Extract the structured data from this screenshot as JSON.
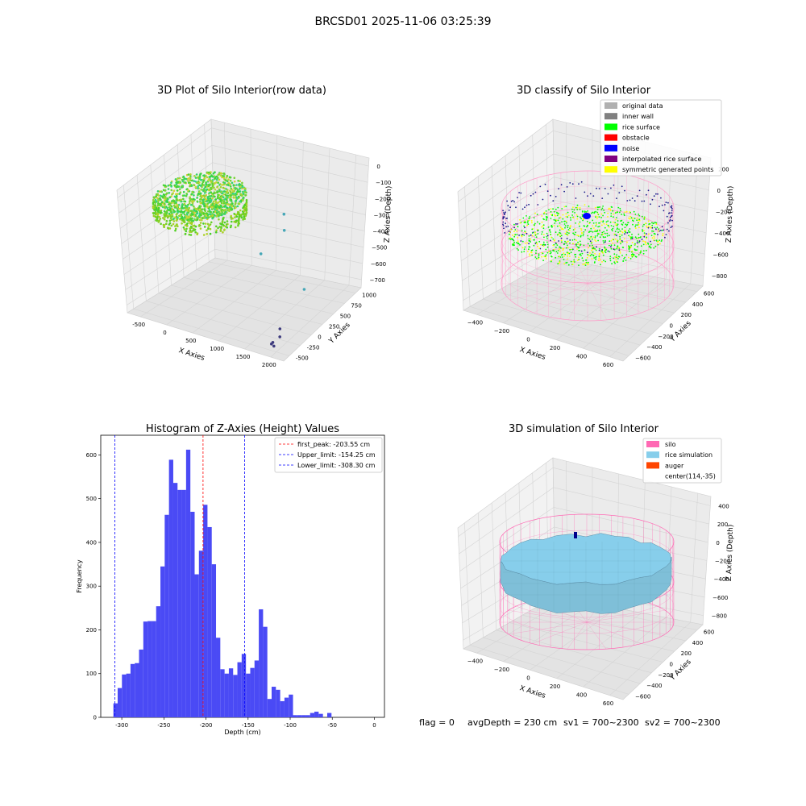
{
  "figure": {
    "suptitle": "BRCSD01 2025-11-06 03:25:39",
    "footer": {
      "flag": "flag = 0",
      "avg_depth": "avgDepth = 230 cm",
      "sv1": "sv1 = 700~2300",
      "sv2": "sv2 = 700~2300"
    }
  },
  "colors": {
    "pane": "#f2f2f2",
    "pane_side": "#e6e6e6",
    "grid": "#d4d4d4",
    "hist_bar": "#4a4af5",
    "silo_pink": "#ff69b4",
    "rice_sim": "#87ceeb",
    "noise_blue": "#0000ff",
    "rice_green": "#00ff00",
    "symmetric_yellow": "#ffff00"
  },
  "chart_data": [
    {
      "id": "raw",
      "type": "scatter",
      "title": "3D Plot of Silo Interior(row data)",
      "xlabel": "X Axies",
      "ylabel": "Y Axies",
      "zlabel": "Z Axies (Depth)",
      "x_ticks": [
        "-500",
        "0",
        "500",
        "1000",
        "1500",
        "2000"
      ],
      "y_ticks": [
        "-500",
        "-250",
        "0",
        "250",
        "500",
        "750",
        "1000"
      ],
      "z_ticks": [
        "0",
        "−100",
        "−200",
        "−300",
        "−400",
        "−500",
        "−600",
        "−700"
      ],
      "xlim": [
        -600,
        2200
      ],
      "ylim": [
        -600,
        1100
      ],
      "zlim": [
        -750,
        50
      ],
      "outliers": [
        {
          "x": 1150,
          "y": 650,
          "z": -240
        },
        {
          "x": 1200,
          "y": 600,
          "z": -320
        },
        {
          "x": 1050,
          "y": 280,
          "z": -410
        },
        {
          "x": 1650,
          "y": 500,
          "z": -600
        },
        {
          "x": 1900,
          "y": -300,
          "z": -650
        },
        {
          "x": 1950,
          "y": -360,
          "z": -680
        },
        {
          "x": 1900,
          "y": -450,
          "z": -700
        },
        {
          "x": 1850,
          "y": -420,
          "z": -720
        },
        {
          "x": 1980,
          "y": -520,
          "z": -700
        }
      ]
    },
    {
      "id": "classify",
      "type": "scatter",
      "title": "3D classify of Silo Interior",
      "xlabel": "X Axies",
      "ylabel": "Y Axies",
      "zlabel": "Z Axies (Depth)",
      "x_ticks": [
        "−400",
        "−200",
        "0",
        "200",
        "400",
        "600"
      ],
      "y_ticks": [
        "−600",
        "−400",
        "−200",
        "0",
        "200",
        "400",
        "600"
      ],
      "z_ticks": [
        "200",
        "0",
        "−200",
        "−400",
        "−600",
        "−800"
      ],
      "legend": [
        {
          "label": "original data",
          "color": "#b0b0b0"
        },
        {
          "label": "inner wall",
          "color": "#808080"
        },
        {
          "label": "rice surface",
          "color": "#00ff00"
        },
        {
          "label": "obstacle",
          "color": "#ff0000"
        },
        {
          "label": "noise",
          "color": "#0000ff"
        },
        {
          "label": "interpolated rice surface",
          "color": "#800080"
        },
        {
          "label": "symmetric generated points",
          "color": "#ffff00"
        }
      ]
    },
    {
      "id": "histogram",
      "type": "bar",
      "title": "Histogram of Z-Axies (Height) Values",
      "xlabel": "Depth (cm)",
      "ylabel": "Frequency",
      "xlim": [
        -325,
        12
      ],
      "ylim": [
        0,
        645
      ],
      "x_ticks": [
        -300,
        -250,
        -200,
        -150,
        -100,
        -50,
        0
      ],
      "y_ticks": [
        0,
        100,
        200,
        300,
        400,
        500,
        600
      ],
      "bin_start": -310,
      "bin_width": 5.08,
      "values": [
        32,
        67,
        98,
        100,
        122,
        124,
        155,
        219,
        220,
        220,
        254,
        345,
        463,
        589,
        536,
        520,
        520,
        612,
        470,
        327,
        381,
        486,
        435,
        350,
        182,
        110,
        100,
        112,
        97,
        126,
        145,
        100,
        113,
        130,
        247,
        207,
        42,
        70,
        63,
        37,
        45,
        52,
        5,
        5,
        5,
        5,
        10,
        13,
        8,
        0,
        10
      ],
      "vlines": [
        {
          "x": -203.55,
          "color": "#ff0000",
          "label": "first_peak: -203.55 cm"
        },
        {
          "x": -154.25,
          "color": "#0000ff",
          "label": "Upper_limit: -154.25 cm"
        },
        {
          "x": -308.3,
          "color": "#0000ff",
          "label": "Lower_limit: -308.30 cm"
        }
      ]
    },
    {
      "id": "simulation",
      "type": "area",
      "title": "3D simulation of Silo Interior",
      "xlabel": "X Axies",
      "ylabel": "Y Axies",
      "zlabel": "Z Axies (Depth)",
      "x_ticks": [
        "−400",
        "−200",
        "0",
        "200",
        "400",
        "600"
      ],
      "y_ticks": [
        "−600",
        "−400",
        "−200",
        "0",
        "200",
        "400",
        "600"
      ],
      "z_ticks": [
        "400",
        "200",
        "0",
        "−200",
        "−400",
        "−600",
        "−800"
      ],
      "legend": [
        {
          "label": "silo",
          "color": "#ff69b4"
        },
        {
          "label": "rice simulation",
          "color": "#87ceeb"
        },
        {
          "label": "auger",
          "color": "#ff4500"
        },
        {
          "label": "center(114,-35)",
          "color": ""
        }
      ]
    }
  ]
}
